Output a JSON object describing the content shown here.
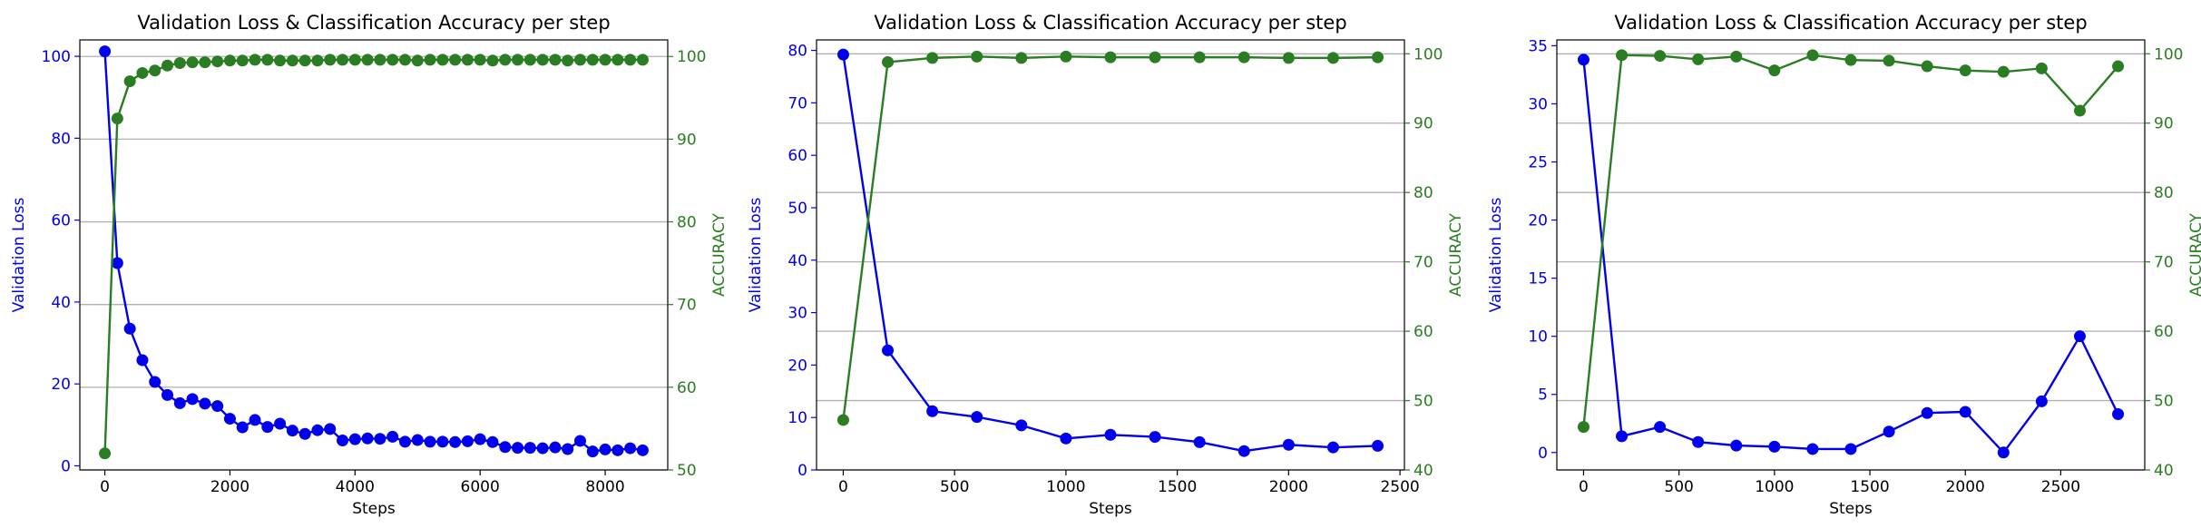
{
  "chart_data": [
    {
      "type": "line",
      "title": "Validation Loss & Classification Accuracy per step",
      "xlabel": "Steps",
      "ylabel_left": "Validation Loss",
      "ylabel_right": "ACCURACY",
      "xlim": [
        -400,
        9000
      ],
      "ylim_left": [
        -1,
        104
      ],
      "ylim_right": [
        50,
        102
      ],
      "xticks": [
        0,
        2000,
        4000,
        6000,
        8000
      ],
      "yticks_left": [
        0,
        20,
        40,
        60,
        80,
        100
      ],
      "yticks_right": [
        50,
        60,
        70,
        80,
        90,
        100
      ],
      "grid": "horizontal, right axis",
      "colors": {
        "loss": "#0000ee",
        "accuracy": "#2a7d22"
      },
      "x": [
        0,
        200,
        400,
        600,
        800,
        1000,
        1200,
        1400,
        1600,
        1800,
        2000,
        2200,
        2400,
        2600,
        2800,
        3000,
        3200,
        3400,
        3600,
        3800,
        4000,
        4200,
        4400,
        4600,
        4800,
        5000,
        5200,
        5400,
        5600,
        5800,
        6000,
        6200,
        6400,
        6600,
        6800,
        7000,
        7200,
        7400,
        7600,
        7800,
        8000,
        8200,
        8400,
        8600
      ],
      "series": [
        {
          "name": "Validation Loss",
          "axis": "left",
          "values": [
            101.2,
            49.5,
            33.5,
            25.8,
            20.5,
            17.3,
            15.3,
            16.3,
            15.2,
            14.6,
            11.5,
            9.4,
            11.2,
            9.5,
            10.3,
            8.6,
            7.8,
            8.7,
            9.0,
            6.2,
            6.5,
            6.7,
            6.6,
            7.1,
            5.9,
            6.3,
            5.9,
            5.9,
            5.8,
            6.0,
            6.5,
            5.8,
            4.6,
            4.4,
            4.4,
            4.3,
            4.5,
            4.1,
            6.1,
            3.5,
            4.0,
            3.8,
            4.3,
            3.8
          ]
        },
        {
          "name": "ACCURACY",
          "axis": "right",
          "values": [
            52.0,
            92.5,
            97.0,
            98.0,
            98.3,
            98.9,
            99.2,
            99.3,
            99.3,
            99.4,
            99.5,
            99.5,
            99.6,
            99.6,
            99.5,
            99.5,
            99.5,
            99.5,
            99.6,
            99.6,
            99.6,
            99.6,
            99.6,
            99.6,
            99.6,
            99.5,
            99.6,
            99.6,
            99.6,
            99.6,
            99.6,
            99.5,
            99.6,
            99.6,
            99.6,
            99.6,
            99.6,
            99.5,
            99.6,
            99.6,
            99.6,
            99.6,
            99.6,
            99.6
          ]
        }
      ]
    },
    {
      "type": "line",
      "title": "Validation Loss & Classification Accuracy per step",
      "xlabel": "Steps",
      "ylabel_left": "Validation Loss",
      "ylabel_right": "ACCURACY",
      "xlim": [
        -120,
        2520
      ],
      "ylim_left": [
        0,
        82
      ],
      "ylim_right": [
        40,
        102
      ],
      "xticks": [
        0,
        500,
        1000,
        1500,
        2000,
        2500
      ],
      "yticks_left": [
        0,
        10,
        20,
        30,
        40,
        50,
        60,
        70,
        80
      ],
      "yticks_right": [
        40,
        50,
        60,
        70,
        80,
        90,
        100
      ],
      "grid": "horizontal, right axis",
      "colors": {
        "loss": "#0000ee",
        "accuracy": "#2a7d22"
      },
      "x": [
        0,
        200,
        400,
        600,
        800,
        1000,
        1200,
        1400,
        1600,
        1800,
        2000,
        2200,
        2400
      ],
      "series": [
        {
          "name": "Validation Loss",
          "axis": "left",
          "values": [
            79.2,
            22.8,
            11.2,
            10.1,
            8.5,
            6.0,
            6.7,
            6.3,
            5.3,
            3.6,
            4.8,
            4.3,
            4.6
          ]
        },
        {
          "name": "ACCURACY",
          "axis": "right",
          "values": [
            47.2,
            98.8,
            99.4,
            99.6,
            99.4,
            99.6,
            99.5,
            99.5,
            99.5,
            99.5,
            99.4,
            99.4,
            99.5
          ]
        }
      ]
    },
    {
      "type": "line",
      "title": "Validation Loss & Classification Accuracy per step",
      "xlabel": "Steps",
      "ylabel_left": "Validation Loss",
      "ylabel_right": "ACCURACY",
      "xlim": [
        -140,
        2940
      ],
      "ylim_left": [
        -1.5,
        35.5
      ],
      "ylim_right": [
        40,
        102
      ],
      "xticks": [
        0,
        500,
        1000,
        1500,
        2000,
        2500
      ],
      "yticks_left": [
        0,
        5,
        10,
        15,
        20,
        25,
        30,
        35
      ],
      "yticks_right": [
        40,
        50,
        60,
        70,
        80,
        90,
        100
      ],
      "grid": "horizontal, right axis",
      "colors": {
        "loss": "#0000ee",
        "accuracy": "#2a7d22"
      },
      "x": [
        0,
        200,
        400,
        600,
        800,
        1000,
        1200,
        1400,
        1600,
        1800,
        2000,
        2200,
        2400,
        2600,
        2800
      ],
      "series": [
        {
          "name": "Validation Loss",
          "axis": "left",
          "values": [
            33.8,
            1.4,
            2.2,
            0.9,
            0.6,
            0.5,
            0.3,
            0.3,
            1.8,
            3.4,
            3.5,
            0.0,
            4.4,
            10.0,
            3.3
          ]
        },
        {
          "name": "ACCURACY",
          "axis": "right",
          "values": [
            46.2,
            99.8,
            99.7,
            99.2,
            99.6,
            97.6,
            99.8,
            99.1,
            99.0,
            98.2,
            97.6,
            97.4,
            97.9,
            91.8,
            98.2
          ]
        }
      ]
    }
  ]
}
